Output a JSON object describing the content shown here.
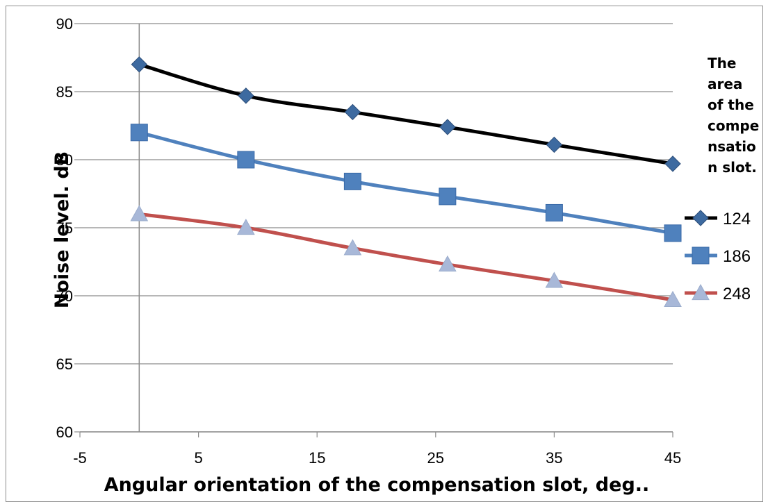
{
  "chart_data": {
    "type": "line",
    "xlabel": "Angular orientation of the compensation slot, deg..",
    "ylabel": "Noise level. dB",
    "xlim": [
      -5,
      45
    ],
    "ylim": [
      60,
      90
    ],
    "x_ticks": [
      -5,
      5,
      15,
      25,
      35,
      45
    ],
    "y_ticks": [
      60,
      65,
      70,
      75,
      80,
      85,
      90
    ],
    "grid": "horizontal",
    "legend_position": "right",
    "legend_title": [
      "The",
      "area",
      "of the",
      "compe",
      "nsatio",
      "n slot."
    ],
    "x": [
      0,
      9,
      18,
      26,
      35,
      45
    ],
    "series": [
      {
        "name": "124",
        "values": [
          87.0,
          84.7,
          83.5,
          82.4,
          81.1,
          79.7
        ],
        "color": "#000000",
        "marker": "diamond",
        "marker_color": "#3d6aa0"
      },
      {
        "name": "186",
        "values": [
          82.0,
          80.0,
          78.4,
          77.3,
          76.1,
          74.6
        ],
        "color": "#4f81bd",
        "marker": "square",
        "marker_color": "#4f81bd"
      },
      {
        "name": "248",
        "values": [
          76.0,
          75.0,
          73.5,
          72.3,
          71.1,
          69.7
        ],
        "color": "#c0504d",
        "marker": "triangle",
        "marker_color": "#a8b8d8"
      }
    ]
  }
}
